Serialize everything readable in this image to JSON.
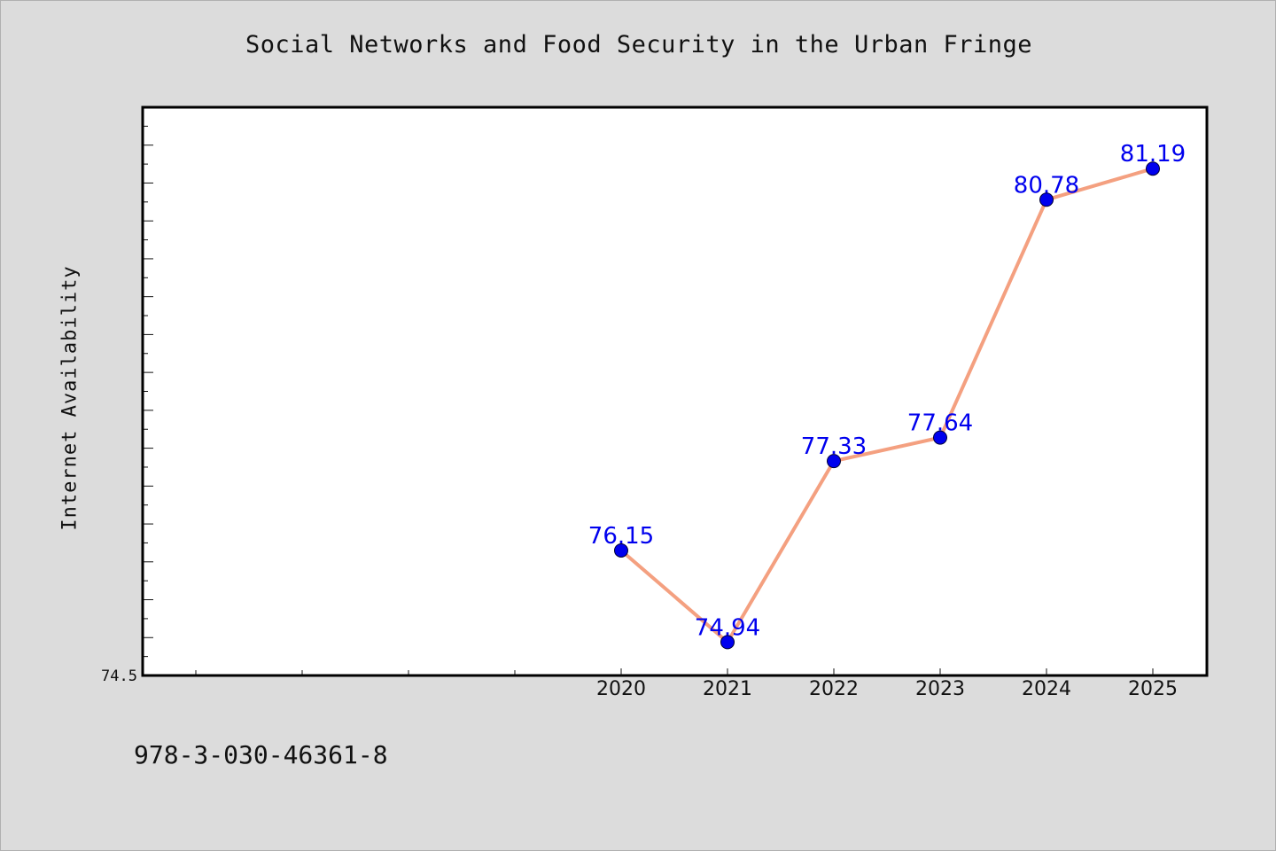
{
  "chart_data": {
    "type": "line",
    "title": "Social Networks and Food Security in the Urban Fringe",
    "xlabel": "",
    "ylabel": "Internet Availability",
    "categories": [
      "2020",
      "2021",
      "2022",
      "2023",
      "2024",
      "2025"
    ],
    "series": [
      {
        "values": [
          76.15,
          74.94,
          77.33,
          77.64,
          80.78,
          81.19
        ],
        "data_labels": [
          "76.15",
          "74.94",
          "77.33",
          "77.64",
          "80.78",
          "81.19"
        ],
        "line_color": "#f4a080",
        "marker_color": "#0000ee"
      }
    ],
    "ylim": [
      74.5,
      82.0
    ],
    "ytick_labels": [
      "74.5"
    ],
    "grid": false,
    "legend": "none",
    "data_label_color": "#0000ee"
  },
  "footer": {
    "isbn": "978-3-030-46361-8"
  }
}
